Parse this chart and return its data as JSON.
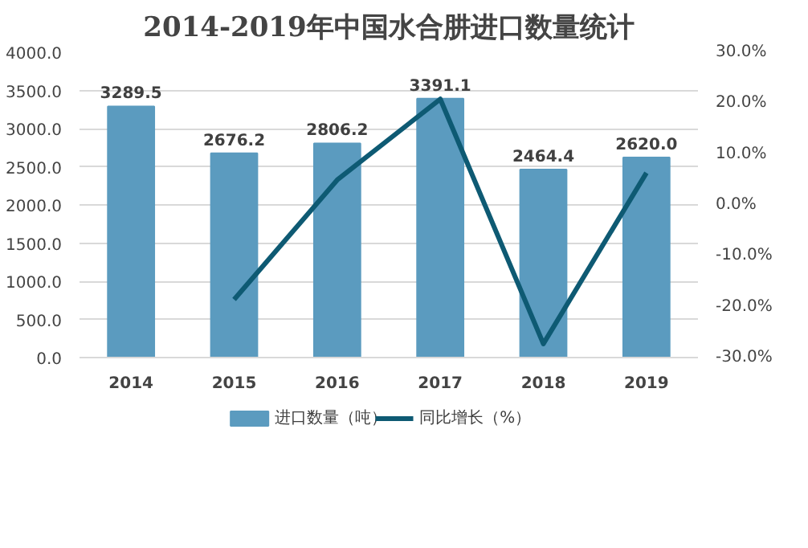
{
  "chart_data": {
    "type": "bar",
    "title": "2014-2019年中国水合肼进口数量统计",
    "categories": [
      "2014",
      "2015",
      "2016",
      "2017",
      "2018",
      "2019"
    ],
    "series": [
      {
        "name": "进口数量（吨）",
        "color": "#5b9bbf",
        "values": [
          3289.5,
          2676.2,
          2806.2,
          3391.1,
          2464.4,
          2620.0
        ],
        "value_labels": [
          "3289.5",
          "2676.2",
          "2806.2",
          "3391.1",
          "2464.4",
          "2620.0"
        ]
      },
      {
        "name": "同比增长（%）",
        "type": "line",
        "axis": "y2",
        "color": "#0e5a73",
        "values": [
          null,
          -18.6,
          4.9,
          20.8,
          -27.3,
          6.3
        ]
      }
    ],
    "ylim": [
      0,
      4000
    ],
    "yticks": [
      {
        "value": 0,
        "label": "0.0"
      },
      {
        "value": 500,
        "label": "500.0"
      },
      {
        "value": 1000,
        "label": "1000.0"
      },
      {
        "value": 1500,
        "label": "1500.0"
      },
      {
        "value": 2000,
        "label": "2000.0"
      },
      {
        "value": 2500,
        "label": "2500.0"
      },
      {
        "value": 3000,
        "label": "3000.0"
      },
      {
        "value": 3500,
        "label": "3500.0"
      },
      {
        "value": 4000,
        "label": "4000.0"
      }
    ],
    "y2lim": [
      -30,
      30
    ],
    "y2ticks": [
      {
        "value": -30,
        "label": "-30.0%"
      },
      {
        "value": -20,
        "label": "-20.0%"
      },
      {
        "value": -10,
        "label": "-10.0%"
      },
      {
        "value": 0,
        "label": "0.0%"
      },
      {
        "value": 10,
        "label": "10.0%"
      },
      {
        "value": 20,
        "label": "20.0%"
      },
      {
        "value": 30,
        "label": "30.0%"
      }
    ],
    "grid": "y",
    "legend": "bottom"
  }
}
